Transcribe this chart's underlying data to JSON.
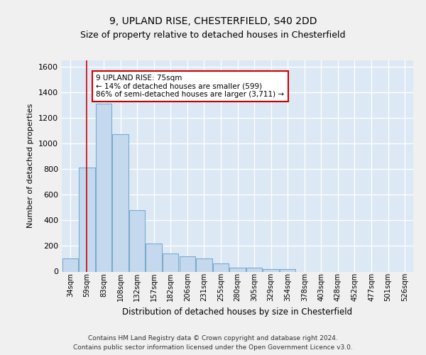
{
  "title1": "9, UPLAND RISE, CHESTERFIELD, S40 2DD",
  "title2": "Size of property relative to detached houses in Chesterfield",
  "xlabel": "Distribution of detached houses by size in Chesterfield",
  "ylabel": "Number of detached properties",
  "categories": [
    "34sqm",
    "59sqm",
    "83sqm",
    "108sqm",
    "132sqm",
    "157sqm",
    "182sqm",
    "206sqm",
    "231sqm",
    "255sqm",
    "280sqm",
    "305sqm",
    "329sqm",
    "354sqm",
    "378sqm",
    "403sqm",
    "428sqm",
    "452sqm",
    "477sqm",
    "501sqm",
    "526sqm"
  ],
  "values": [
    100,
    810,
    1310,
    1075,
    480,
    220,
    140,
    120,
    100,
    65,
    30,
    30,
    20,
    20,
    0,
    0,
    0,
    0,
    0,
    0,
    0
  ],
  "bar_color": "#c5d9ee",
  "bar_edge_color": "#7aabcf",
  "red_line_x": 1,
  "annotation_text": "9 UPLAND RISE: 75sqm\n← 14% of detached houses are smaller (599)\n86% of semi-detached houses are larger (3,711) →",
  "annotation_box_facecolor": "#ffffff",
  "annotation_box_edgecolor": "#cc0000",
  "ylim": [
    0,
    1650
  ],
  "yticks": [
    0,
    200,
    400,
    600,
    800,
    1000,
    1200,
    1400,
    1600
  ],
  "footer1": "Contains HM Land Registry data © Crown copyright and database right 2024.",
  "footer2": "Contains public sector information licensed under the Open Government Licence v3.0.",
  "fig_facecolor": "#f0f0f0",
  "plot_bg_color": "#dce9f5",
  "grid_color": "#ffffff",
  "title1_fontsize": 10,
  "title2_fontsize": 9
}
